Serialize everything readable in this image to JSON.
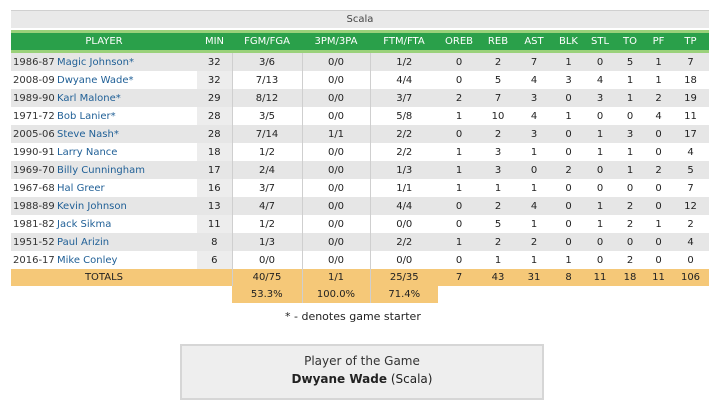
{
  "team": "Scala",
  "columns": [
    "PLAYER",
    "MIN",
    "FGM/FGA",
    "3PM/3PA",
    "FTM/FTA",
    "OREB",
    "REB",
    "AST",
    "BLK",
    "STL",
    "TO",
    "PF",
    "TP"
  ],
  "rows": [
    {
      "year": "1986-87",
      "player": "Magic Johnson*",
      "min": "32",
      "fg": "3/6",
      "tp3": "0/0",
      "ft": "1/2",
      "oreb": "0",
      "reb": "2",
      "ast": "7",
      "blk": "1",
      "stl": "0",
      "to": "5",
      "pf": "1",
      "pts": "7"
    },
    {
      "year": "2008-09",
      "player": "Dwyane Wade*",
      "min": "32",
      "fg": "7/13",
      "tp3": "0/0",
      "ft": "4/4",
      "oreb": "0",
      "reb": "5",
      "ast": "4",
      "blk": "3",
      "stl": "4",
      "to": "1",
      "pf": "1",
      "pts": "18"
    },
    {
      "year": "1989-90",
      "player": "Karl Malone*",
      "min": "29",
      "fg": "8/12",
      "tp3": "0/0",
      "ft": "3/7",
      "oreb": "2",
      "reb": "7",
      "ast": "3",
      "blk": "0",
      "stl": "3",
      "to": "1",
      "pf": "2",
      "pts": "19"
    },
    {
      "year": "1971-72",
      "player": "Bob Lanier*",
      "min": "28",
      "fg": "3/5",
      "tp3": "0/0",
      "ft": "5/8",
      "oreb": "1",
      "reb": "10",
      "ast": "4",
      "blk": "1",
      "stl": "0",
      "to": "0",
      "pf": "4",
      "pts": "11"
    },
    {
      "year": "2005-06",
      "player": "Steve Nash*",
      "min": "28",
      "fg": "7/14",
      "tp3": "1/1",
      "ft": "2/2",
      "oreb": "0",
      "reb": "2",
      "ast": "3",
      "blk": "0",
      "stl": "1",
      "to": "3",
      "pf": "0",
      "pts": "17"
    },
    {
      "year": "1990-91",
      "player": "Larry Nance",
      "min": "18",
      "fg": "1/2",
      "tp3": "0/0",
      "ft": "2/2",
      "oreb": "1",
      "reb": "3",
      "ast": "1",
      "blk": "0",
      "stl": "1",
      "to": "1",
      "pf": "0",
      "pts": "4"
    },
    {
      "year": "1969-70",
      "player": "Billy Cunningham",
      "min": "17",
      "fg": "2/4",
      "tp3": "0/0",
      "ft": "1/3",
      "oreb": "1",
      "reb": "3",
      "ast": "0",
      "blk": "2",
      "stl": "0",
      "to": "1",
      "pf": "2",
      "pts": "5"
    },
    {
      "year": "1967-68",
      "player": "Hal Greer",
      "min": "16",
      "fg": "3/7",
      "tp3": "0/0",
      "ft": "1/1",
      "oreb": "1",
      "reb": "1",
      "ast": "1",
      "blk": "0",
      "stl": "0",
      "to": "0",
      "pf": "0",
      "pts": "7"
    },
    {
      "year": "1988-89",
      "player": "Kevin Johnson",
      "min": "13",
      "fg": "4/7",
      "tp3": "0/0",
      "ft": "4/4",
      "oreb": "0",
      "reb": "2",
      "ast": "4",
      "blk": "0",
      "stl": "1",
      "to": "2",
      "pf": "0",
      "pts": "12"
    },
    {
      "year": "1981-82",
      "player": "Jack Sikma",
      "min": "11",
      "fg": "1/2",
      "tp3": "0/0",
      "ft": "0/0",
      "oreb": "0",
      "reb": "5",
      "ast": "1",
      "blk": "0",
      "stl": "1",
      "to": "2",
      "pf": "1",
      "pts": "2"
    },
    {
      "year": "1951-52",
      "player": "Paul Arizin",
      "min": "8",
      "fg": "1/3",
      "tp3": "0/0",
      "ft": "2/2",
      "oreb": "1",
      "reb": "2",
      "ast": "2",
      "blk": "0",
      "stl": "0",
      "to": "0",
      "pf": "0",
      "pts": "4"
    },
    {
      "year": "2016-17",
      "player": "Mike Conley",
      "min": "6",
      "fg": "0/0",
      "tp3": "0/0",
      "ft": "0/0",
      "oreb": "0",
      "reb": "1",
      "ast": "1",
      "blk": "1",
      "stl": "0",
      "to": "2",
      "pf": "0",
      "pts": "0"
    }
  ],
  "totals": {
    "label": "TOTALS",
    "fg": "40/75",
    "tp3": "1/1",
    "ft": "25/35",
    "oreb": "7",
    "reb": "43",
    "ast": "31",
    "blk": "8",
    "stl": "11",
    "to": "18",
    "pf": "11",
    "pts": "106"
  },
  "percentages": {
    "fg": "53.3%",
    "tp3": "100.0%",
    "ft": "71.4%"
  },
  "starter_note": "* - denotes game starter",
  "player_of_game": {
    "label": "Player of the Game",
    "name": "Dwyane Wade",
    "team": "(Scala)"
  },
  "colors": {
    "header_green": "#2aa04a",
    "header_border": "#9ad17a",
    "totals_orange": "#f5c878",
    "link_blue": "#1f5f96"
  }
}
